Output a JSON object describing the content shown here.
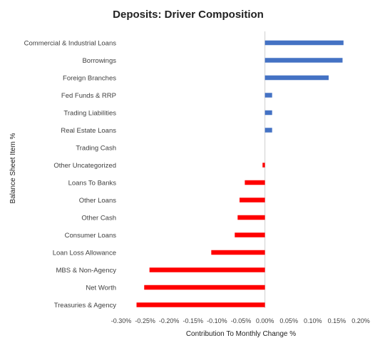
{
  "chart_data": {
    "type": "bar",
    "orientation": "horizontal",
    "title": "Deposits: Driver Composition",
    "xlabel": "Contribution To Monthly Change %",
    "ylabel": "Balance Sheet Item %",
    "xlim": [
      -0.003,
      0.002
    ],
    "xticks": [
      -0.003,
      -0.0025,
      -0.002,
      -0.0015,
      -0.001,
      -0.0005,
      0.0,
      0.0005,
      0.001,
      0.0015,
      0.002
    ],
    "xtick_labels": [
      "-0.30%",
      "-0.25%",
      "-0.20%",
      "-0.15%",
      "-0.10%",
      "-0.05%",
      "0.00%",
      "0.05%",
      "0.10%",
      "0.15%",
      "0.20%"
    ],
    "grid": false,
    "categories": [
      "Commercial & Industrial Loans",
      "Borrowings",
      "Foreign Branches",
      "Fed Funds & RRP",
      "Trading Liabilities",
      "Real Estate Loans",
      "Trading Cash",
      "Other Uncategorized",
      "Loans To Banks",
      "Other Loans",
      "Other Cash",
      "Consumer Loans",
      "Loan Loss Allowance",
      "MBS & Non-Agency",
      "Net Worth",
      "Treasuries & Agency"
    ],
    "values": [
      0.00164,
      0.00162,
      0.00133,
      0.00015,
      0.00015,
      0.00015,
      0.0,
      -5e-05,
      -0.00042,
      -0.00053,
      -0.00057,
      -0.00063,
      -0.00112,
      -0.00241,
      -0.00252,
      -0.00268
    ],
    "colors": {
      "positive": "#4472C4",
      "negative": "#FF0000",
      "axis": "#d0d0d0"
    }
  }
}
